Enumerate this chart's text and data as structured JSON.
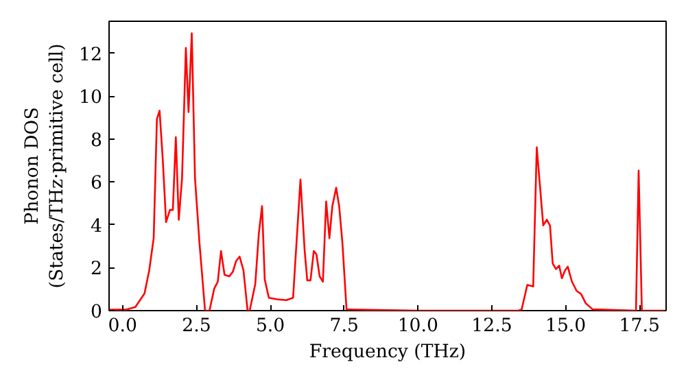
{
  "chart_data": {
    "type": "line",
    "xlabel": "Frequency (THz)",
    "ylabel": "Phonon DOS\n(States/THz·primitive cell)",
    "x": [
      -0.45,
      0.12,
      0.43,
      0.74,
      0.9,
      1.05,
      1.16,
      1.25,
      1.36,
      1.47,
      1.6,
      1.7,
      1.8,
      1.9,
      2.01,
      2.14,
      2.23,
      2.34,
      2.45,
      2.6,
      2.79,
      2.94,
      3.1,
      3.22,
      3.33,
      3.45,
      3.61,
      3.73,
      3.84,
      3.96,
      4.09,
      4.23,
      4.3,
      4.49,
      4.61,
      4.72,
      4.81,
      4.95,
      5.23,
      5.54,
      5.77,
      6.02,
      6.16,
      6.25,
      6.36,
      6.47,
      6.56,
      6.67,
      6.78,
      6.89,
      7.0,
      7.1,
      7.23,
      7.33,
      7.44,
      7.58,
      10.0,
      13.4,
      13.51,
      13.7,
      13.9,
      14.02,
      14.24,
      14.36,
      14.47,
      14.56,
      14.67,
      14.78,
      14.87,
      14.98,
      15.07,
      15.21,
      15.37,
      15.52,
      15.68,
      15.91,
      17.38,
      17.47,
      17.58,
      18.35
    ],
    "series": [
      {
        "color": "#ff0000",
        "values": [
          0.05,
          0.05,
          0.17,
          0.8,
          1.88,
          3.38,
          8.94,
          9.33,
          7.0,
          4.13,
          4.7,
          4.7,
          8.09,
          4.24,
          6.16,
          12.26,
          9.26,
          12.94,
          6.16,
          3.17,
          0,
          0,
          1.03,
          1.35,
          2.78,
          1.67,
          1.6,
          1.81,
          2.31,
          2.52,
          1.88,
          0,
          0,
          1.24,
          3.59,
          4.88,
          1.46,
          0.6,
          0.53,
          0.49,
          0.6,
          6.12,
          2.84,
          1.41,
          1.41,
          2.78,
          2.63,
          1.6,
          1.35,
          5.09,
          3.38,
          4.88,
          5.73,
          4.88,
          3.17,
          0.06,
          0,
          0,
          0.06,
          1.2,
          1.13,
          7.62,
          3.98,
          4.24,
          3.96,
          2.2,
          1.94,
          2.1,
          1.51,
          1.88,
          2.05,
          1.36,
          0.92,
          0.78,
          0.34,
          0.06,
          0,
          6.53,
          0,
          0
        ]
      }
    ],
    "xlim": [
      -0.46,
      18.4
    ],
    "ylim": [
      0,
      13.5
    ],
    "xticks": [
      {
        "value": 0,
        "label": "0.0"
      },
      {
        "value": 2.5,
        "label": "2.5"
      },
      {
        "value": 5,
        "label": "5.0"
      },
      {
        "value": 7.5,
        "label": "7.5"
      },
      {
        "value": 10,
        "label": "10.0"
      },
      {
        "value": 12.5,
        "label": "12.5"
      },
      {
        "value": 15,
        "label": "15.0"
      },
      {
        "value": 17.5,
        "label": "17.5"
      }
    ],
    "yticks": [
      0,
      2,
      4,
      6,
      8,
      10,
      12
    ],
    "grid": false,
    "line_style": "solid",
    "marker": "none"
  }
}
